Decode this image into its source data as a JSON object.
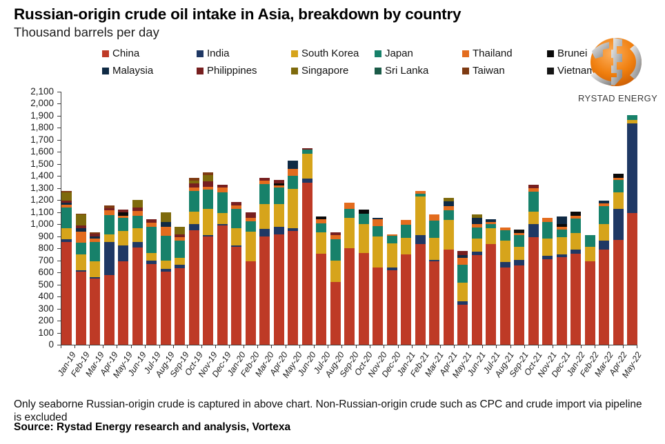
{
  "title": "Russian-origin crude oil intake in Asia, breakdown by country",
  "subtitle": "Thousand barrels per day",
  "logo": {
    "text": "RYSTAD ENERGY"
  },
  "footnote": "Only seaborne Russian-origin crude is captured in above chart. Non-Russian-origin crude such as CPC and crude import via pipeline is excluded",
  "source": "Source: Rystad Energy research and analysis,  Vortexa",
  "chart_data": {
    "type": "bar",
    "stacked": true,
    "title": "Russian-origin crude oil intake in Asia, breakdown by country",
    "subtitle": "Thousand barrels per day",
    "xlabel": "",
    "ylabel": "Thousand barrels per day",
    "ylim": [
      0,
      2100
    ],
    "ytick_step": 100,
    "grid": false,
    "legend_position": "top",
    "categories": [
      "Jan-19",
      "Feb-19",
      "Mar-19",
      "Apr-19",
      "May-19",
      "Jun-19",
      "Jul-19",
      "Aug-19",
      "Sep-19",
      "Oct-19",
      "Nov-19",
      "Dec-19",
      "Jan-20",
      "Feb-20",
      "Mar-20",
      "Apr-20",
      "May-20",
      "Jun-20",
      "Jul-20",
      "Aug-20",
      "Sep-20",
      "Oct-20",
      "Nov-20",
      "Dec-20",
      "Jan-21",
      "Feb-21",
      "Mar-21",
      "Apr-21",
      "May-21",
      "Jun-21",
      "Jul-21",
      "Aug-21",
      "Sep-21",
      "Oct-21",
      "Nov-21",
      "Dec-21",
      "Jan-22",
      "Feb-22",
      "Mar-22",
      "Apr-22",
      "May-22"
    ],
    "series": [
      {
        "name": "China",
        "color": "#BE3A26",
        "values": [
          850,
          605,
          550,
          576,
          690,
          805,
          668,
          605,
          635,
          950,
          897,
          990,
          810,
          690,
          900,
          915,
          945,
          1345,
          757,
          520,
          800,
          763,
          640,
          620,
          748,
          834,
          690,
          791,
          334,
          744,
          834,
          643,
          660,
          890,
          711,
          725,
          753,
          690,
          788,
          872,
          1093
        ]
      },
      {
        "name": "India",
        "color": "#1F3864",
        "values": [
          25,
          15,
          10,
          277,
          134,
          48,
          28,
          24,
          27,
          50,
          15,
          10,
          15,
          0,
          60,
          65,
          20,
          32,
          0,
          0,
          0,
          0,
          0,
          23,
          0,
          76,
          14,
          0,
          28,
          28,
          0,
          44,
          45,
          110,
          27,
          25,
          35,
          0,
          76,
          253,
          744
        ]
      },
      {
        "name": "South Korea",
        "color": "#D6A41B",
        "values": [
          95,
          130,
          135,
          63,
          120,
          116,
          63,
          67,
          57,
          105,
          213,
          95,
          140,
          250,
          208,
          190,
          330,
          206,
          177,
          180,
          254,
          238,
          257,
          197,
          139,
          320,
          185,
          243,
          153,
          111,
          133,
          177,
          110,
          105,
          145,
          141,
          141,
          120,
          140,
          140,
          27
        ]
      },
      {
        "name": "Japan",
        "color": "#17816A",
        "values": [
          170,
          95,
          160,
          161,
          109,
          103,
          218,
          210,
          145,
          170,
          162,
          170,
          165,
          82,
          168,
          133,
          105,
          34,
          73,
          177,
          71,
          86,
          86,
          67,
          109,
          23,
          139,
          82,
          147,
          91,
          34,
          84,
          95,
          166,
          137,
          63,
          120,
          100,
          145,
          103,
          43
        ]
      },
      {
        "name": "Thailand",
        "color": "#E36C1E",
        "values": [
          20,
          95,
          25,
          39,
          20,
          38,
          37,
          71,
          27,
          30,
          25,
          38,
          25,
          30,
          25,
          20,
          60,
          0,
          33,
          33,
          54,
          0,
          57,
          10,
          38,
          25,
          51,
          32,
          57,
          27,
          15,
          25,
          15,
          29,
          35,
          24,
          19,
          0,
          23,
          19,
          0
        ]
      },
      {
        "name": "Brunei",
        "color": "#0A0A0A",
        "values": [
          0,
          0,
          0,
          0,
          25,
          0,
          0,
          0,
          0,
          0,
          0,
          0,
          0,
          0,
          0,
          15,
          0,
          0,
          22,
          0,
          0,
          33,
          0,
          0,
          0,
          0,
          0,
          0,
          0,
          0,
          0,
          0,
          0,
          0,
          0,
          23,
          38,
          0,
          0,
          30,
          0
        ]
      },
      {
        "name": "Malaysia",
        "color": "#0F2A44",
        "values": [
          20,
          25,
          20,
          0,
          0,
          0,
          0,
          43,
          0,
          0,
          0,
          0,
          0,
          0,
          0,
          0,
          70,
          0,
          0,
          0,
          0,
          0,
          15,
          0,
          0,
          0,
          0,
          42,
          23,
          54,
          27,
          0,
          0,
          0,
          0,
          61,
          0,
          0,
          25,
          0,
          0
        ]
      },
      {
        "name": "Philippines",
        "color": "#771F1F",
        "values": [
          15,
          25,
          20,
          20,
          24,
          30,
          29,
          0,
          25,
          35,
          45,
          25,
          30,
          45,
          26,
          30,
          0,
          14,
          0,
          21,
          0,
          0,
          0,
          0,
          0,
          0,
          0,
          0,
          34,
          0,
          0,
          0,
          0,
          28,
          0,
          0,
          0,
          0,
          0,
          0,
          0
        ]
      },
      {
        "name": "Singapore",
        "color": "#7E6A0C",
        "values": [
          70,
          90,
          0,
          0,
          0,
          62,
          0,
          80,
          61,
          25,
          50,
          0,
          0,
          0,
          0,
          0,
          0,
          0,
          0,
          0,
          0,
          0,
          0,
          0,
          0,
          0,
          0,
          31,
          0,
          26,
          0,
          0,
          0,
          0,
          0,
          0,
          0,
          0,
          0,
          0,
          0
        ]
      },
      {
        "name": "Sri Lanka",
        "color": "#1B5B48",
        "values": [
          0,
          0,
          0,
          0,
          0,
          0,
          0,
          0,
          0,
          0,
          0,
          0,
          0,
          0,
          0,
          0,
          0,
          0,
          0,
          0,
          0,
          0,
          0,
          0,
          0,
          0,
          0,
          0,
          0,
          0,
          0,
          0,
          0,
          0,
          0,
          0,
          0,
          0,
          0,
          0,
          0
        ]
      },
      {
        "name": "Taiwan",
        "color": "#7E3A12",
        "values": [
          10,
          10,
          15,
          22,
          0,
          0,
          0,
          0,
          0,
          21,
          25,
          0,
          0,
          0,
          0,
          0,
          0,
          0,
          0,
          0,
          0,
          0,
          0,
          0,
          0,
          0,
          0,
          0,
          0,
          0,
          0,
          0,
          0,
          0,
          0,
          0,
          0,
          0,
          0,
          0,
          0
        ]
      },
      {
        "name": "Vietnam",
        "color": "#151515",
        "values": [
          0,
          0,
          0,
          0,
          0,
          0,
          0,
          0,
          0,
          0,
          0,
          0,
          0,
          0,
          0,
          0,
          0,
          0,
          0,
          0,
          0,
          0,
          0,
          0,
          0,
          0,
          0,
          0,
          0,
          0,
          0,
          0,
          30,
          0,
          0,
          0,
          0,
          0,
          0,
          0,
          0
        ]
      }
    ]
  }
}
